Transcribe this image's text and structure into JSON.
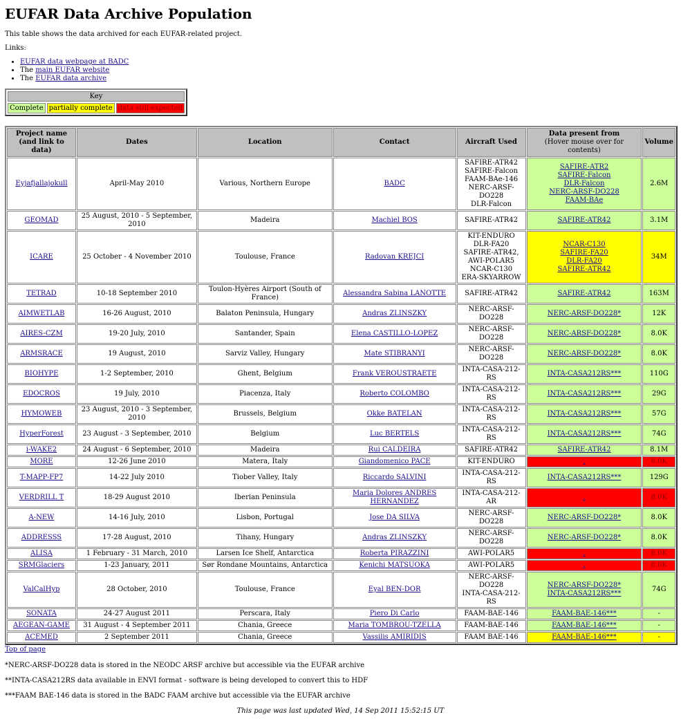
{
  "title": "EUFAR Data Archive Population",
  "intro": "This table shows the data archived for each EUFAR-related project.",
  "links_label": "Links:",
  "links": [
    {
      "prefix": "",
      "text": "EUFAR data webpage at BADC"
    },
    {
      "prefix": "The ",
      "text": "main EUFAR website"
    },
    {
      "prefix": "The ",
      "text": "EUFAR data archive"
    }
  ],
  "key": {
    "title": "Key",
    "complete": "Complete",
    "partial": "partially complete",
    "missing": "data still expected",
    "colors": {
      "complete": "#ccff99",
      "partial": "#ffff00",
      "missing": "#ff0000"
    }
  },
  "table": {
    "headers": {
      "project": "Project name (and link to data)",
      "dates": "Dates",
      "location": "Location",
      "contact": "Contact",
      "aircraft": "Aircraft Used",
      "data_title": "Data present from",
      "data_sub": "(Hover mouse over for contents)",
      "volume": "Volume"
    },
    "rows": [
      {
        "project": "Eyjafjallajokull",
        "dates": "April-May 2010",
        "location": "Various, Northern Europe",
        "contact": "BADC",
        "aircraft": [
          "SAFIRE-ATR42",
          "SAFIRE-Falcon",
          "FAAM-BAe-146",
          "NERC-ARSF-DO228",
          "DLR-Falcon"
        ],
        "data": [
          "SAFIRE-ATR2",
          "SAFIRE-Falcon",
          "DLR-Falcon",
          "NERC-ARSF-DO228",
          "FAAM-BAe"
        ],
        "status": "complete",
        "volume": "2.6M"
      },
      {
        "project": "GEOMAD",
        "dates": "25 August, 2010 - 5 September, 2010",
        "location": "Madeira",
        "contact": "Machiel BOS",
        "aircraft": [
          "SAFIRE-ATR42"
        ],
        "data": [
          "SAFIRE-ATR42"
        ],
        "status": "complete",
        "volume": "3.1M"
      },
      {
        "project": "ICARE",
        "dates": "25 October - 4 November 2010",
        "location": "Toulouse, France",
        "contact": "Radovan KREJCI",
        "aircraft": [
          "KIT-ENDURO",
          "DLR-FA20",
          "SAFIRE-ATR42,",
          "AWI-POLAR5",
          "NCAR-C130",
          "ERA-SKYARROW"
        ],
        "data": [
          "NCAR-C130",
          "SAFIRE-FA20",
          "DLR-FA20",
          "SAFIRE-ATR42"
        ],
        "status": "partial",
        "volume": "34M"
      },
      {
        "project": "TETRAD",
        "dates": "10-18 September 2010",
        "location": "Toulon-Hyères Airport (South of France)",
        "contact": "Alessandra Sabina LANOTTE",
        "aircraft": [
          "SAFIRE-ATR42"
        ],
        "data": [
          "SAFIRE-ATR42"
        ],
        "status": "complete",
        "volume": "163M"
      },
      {
        "project": "AIMWETLAB",
        "dates": "16-26 August, 2010",
        "location": "Balaton Peninsula, Hungary",
        "contact": "Andras ZLINSZKY",
        "aircraft": [
          "NERC-ARSF-DO228"
        ],
        "data": [
          "NERC-ARSF-DO228*"
        ],
        "status": "complete",
        "volume": "12K"
      },
      {
        "project": "AIRES-CZM",
        "dates": "19-20 July, 2010",
        "location": "Santander, Spain",
        "contact": "Elena CASTILLO-LOPEZ",
        "aircraft": [
          "NERC-ARSF-DO228"
        ],
        "data": [
          "NERC-ARSF-DO228*"
        ],
        "status": "complete",
        "volume": "8.0K"
      },
      {
        "project": "ARMSRACE",
        "dates": "19 August, 2010",
        "location": "Sarviz Valley, Hungary",
        "contact": "Mate STIBRANYI",
        "aircraft": [
          "NERC-ARSF-DO228"
        ],
        "data": [
          "NERC-ARSF-DO228*"
        ],
        "status": "complete",
        "volume": "8.0K"
      },
      {
        "project": "BIOHYPE",
        "dates": "1-2 September, 2010",
        "location": "Ghent, Belgium",
        "contact": "Frank VEROUSTRAETE",
        "aircraft": [
          "INTA-CASA-212-RS"
        ],
        "data": [
          "INTA-CASA212RS***"
        ],
        "status": "complete",
        "volume": "110G"
      },
      {
        "project": "EDOCROS",
        "dates": "19 July, 2010",
        "location": "Piacenza, Italy",
        "contact": "Roberto COLOMBO",
        "aircraft": [
          "INTA-CASA-212-RS"
        ],
        "data": [
          "INTA-CASA212RS***"
        ],
        "status": "complete",
        "volume": "29G"
      },
      {
        "project": "HYMOWEB",
        "dates": "23 August, 2010 - 3 September, 2010",
        "location": "Brussels, Belgium",
        "contact": "Okke BATELAN",
        "aircraft": [
          "INTA-CASA-212-RS"
        ],
        "data": [
          "INTA-CASA212RS***"
        ],
        "status": "complete",
        "volume": "57G"
      },
      {
        "project": "HyperForest",
        "dates": "23 August - 3 September, 2010",
        "location": "Belgium",
        "contact": "Luc BERTELS",
        "aircraft": [
          "INTA-CASA-212-RS"
        ],
        "data": [
          "INTA-CASA212RS***"
        ],
        "status": "complete",
        "volume": "74G"
      },
      {
        "project": "i-WAKE2",
        "dates": "24 August - 6 September, 2010",
        "location": "Madeira",
        "contact": "Rui CALDEIRA",
        "aircraft": [
          "SAFIRE-ATR42"
        ],
        "data": [
          "SAFIRE-ATR42"
        ],
        "status": "complete",
        "volume": "8.1M"
      },
      {
        "project": "MORE",
        "dates": "12-26 June 2010",
        "location": "Matera, Italy",
        "contact": "Giandomenico PACE",
        "aircraft": [
          "KIT-ENDURO"
        ],
        "data": [
          "."
        ],
        "status": "missing",
        "volume": "8.0K"
      },
      {
        "project": "T-MAPP-FP7",
        "dates": "14-22 July 2010",
        "location": "Tiober Valley, Italy",
        "contact": "Riccardo SALVINI",
        "aircraft": [
          "INTA-CASA-212-RS"
        ],
        "data": [
          "INTA-CASA212RS***"
        ],
        "status": "complete",
        "volume": "129G"
      },
      {
        "project": "VERDRILL T",
        "dates": "18-29 August 2010",
        "location": "Iberian Peninsula",
        "contact": "Maria Dolores ANDRES HERNANDEZ",
        "aircraft": [
          "INTA-CASA-212-AR"
        ],
        "data": [
          "."
        ],
        "status": "missing",
        "volume": "8.0K"
      },
      {
        "project": "A-NEW",
        "dates": "14-16 July, 2010",
        "location": "Lisbon, Portugal",
        "contact": "Jose DA SILVA",
        "aircraft": [
          "NERC-ARSF-DO228"
        ],
        "data": [
          "NERC-ARSF-DO228*"
        ],
        "status": "complete",
        "volume": "8.0K"
      },
      {
        "project": "ADDRESSS",
        "dates": "17-28 August, 2010",
        "location": "Tihany, Hungary",
        "contact": "Andras ZLINSZKY",
        "aircraft": [
          "NERC-ARSF-DO228"
        ],
        "data": [
          "NERC-ARSF-DO228*"
        ],
        "status": "complete",
        "volume": "8.0K"
      },
      {
        "project": "ALISA",
        "dates": "1 February - 31 March, 2010",
        "location": "Larsen Ice Shelf, Antarctica",
        "contact": "Roberta PIRAZZINI",
        "aircraft": [
          "AWI-POLAR5"
        ],
        "data": [
          "."
        ],
        "status": "missing",
        "volume": "8.0K"
      },
      {
        "project": "SRMGlaciers",
        "dates": "1-23 January, 2011",
        "location": "Sør Rondane Mountains, Antarctica",
        "contact": "Kenichi MATSUOKA",
        "aircraft": [
          "AWI-POLAR5"
        ],
        "data": [
          "."
        ],
        "status": "missing",
        "volume": "8.0K"
      },
      {
        "project": "ValCalHyp",
        "dates": "28 October, 2010",
        "location": "Toulouse, France",
        "contact": "Eyal BEN-DOR",
        "aircraft": [
          "NERC-ARSF-DO228",
          "INTA-CASA-212-RS"
        ],
        "data": [
          "NERC-ARSF-DO228*",
          "INTA-CASA212RS***"
        ],
        "status": "complete",
        "volume": "74G"
      },
      {
        "project": "SONATA",
        "dates": "24-27 August 2011",
        "location": "Perscara, Italy",
        "contact": "Piero Di Carlo",
        "aircraft": [
          "FAAM-BAE-146"
        ],
        "data": [
          "FAAM-BAE-146***"
        ],
        "status": "complete",
        "volume": "-"
      },
      {
        "project": "AEGEAN-GAME",
        "dates": "31 August - 4 September 2011",
        "location": "Chania, Greece",
        "contact": "Maria TOMBROU-TZELLA",
        "aircraft": [
          "FAAM-BAE-146"
        ],
        "data": [
          "FAAM-BAE-146***"
        ],
        "status": "complete",
        "volume": "-"
      },
      {
        "project": "ACEMED",
        "dates": "2 September 2011",
        "location": "Chania, Greece",
        "contact": "Vassilis AMIRIDIS",
        "aircraft": [
          "FAAM BAE-146"
        ],
        "data": [
          "FAAM-BAE-146***"
        ],
        "status": "partial",
        "volume": "-"
      }
    ]
  },
  "top_link": "Top of page",
  "notes": [
    "*NERC-ARSF-DO228 data is stored in the NEODC ARSF archive but accessible via the EUFAR archive",
    "**INTA-CASA212RS data available in ENVI format - software is being developed to convert this to HDF",
    "***FAAM BAE-146 data is stored in the BADC FAAM archive but accessible via the EUFAR archive"
  ],
  "updated": "This page was last updated Wed, 14 Sep 2011 15:52:15 UT"
}
